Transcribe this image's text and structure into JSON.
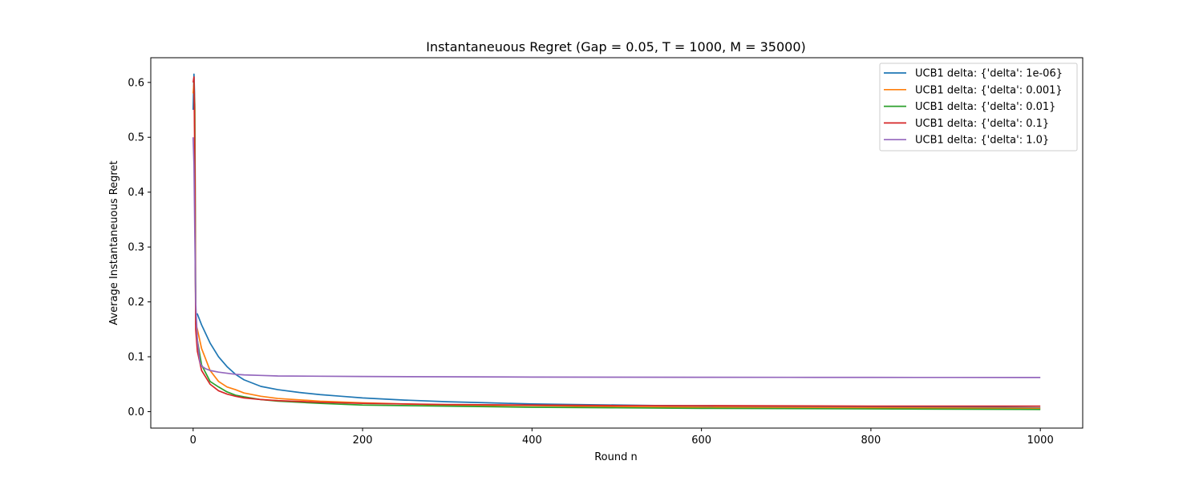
{
  "chart_data": {
    "type": "line",
    "title": "Instantaneuous Regret (Gap = 0.05, T = 1000, M = 35000)",
    "xlabel": "Round n",
    "ylabel": "Average Instantaneuous Regret",
    "xlim": [
      -50,
      1050
    ],
    "ylim": [
      -0.03,
      0.645
    ],
    "xticks": [
      0,
      200,
      400,
      600,
      800,
      1000
    ],
    "yticks": [
      0.0,
      0.1,
      0.2,
      0.3,
      0.4,
      0.5,
      0.6
    ],
    "legend_position": "top-right",
    "series": [
      {
        "name": "UCB1 delta: {'delta': 1e-06}",
        "color": "#1f77b4",
        "x": [
          0,
          1,
          2,
          3,
          5,
          10,
          20,
          30,
          40,
          50,
          60,
          80,
          100,
          125,
          150,
          175,
          200,
          250,
          300,
          350,
          400,
          450,
          500,
          600,
          700,
          800,
          900,
          1000
        ],
        "y": [
          0.55,
          0.615,
          0.56,
          0.178,
          0.178,
          0.158,
          0.125,
          0.1,
          0.082,
          0.068,
          0.058,
          0.046,
          0.04,
          0.035,
          0.031,
          0.028,
          0.025,
          0.021,
          0.018,
          0.016,
          0.014,
          0.013,
          0.012,
          0.01,
          0.009,
          0.008,
          0.008,
          0.007
        ]
      },
      {
        "name": "UCB1 delta: {'delta': 0.001}",
        "color": "#ff7f0e",
        "x": [
          0,
          1,
          2,
          3,
          5,
          10,
          20,
          30,
          40,
          50,
          60,
          80,
          100,
          150,
          200,
          300,
          400,
          500,
          600,
          800,
          1000
        ],
        "y": [
          0.58,
          0.6,
          0.55,
          0.16,
          0.15,
          0.115,
          0.075,
          0.055,
          0.045,
          0.04,
          0.034,
          0.028,
          0.024,
          0.019,
          0.016,
          0.012,
          0.011,
          0.009,
          0.008,
          0.007,
          0.006
        ]
      },
      {
        "name": "UCB1 delta: {'delta': 0.01}",
        "color": "#2ca02c",
        "x": [
          0,
          1,
          2,
          3,
          5,
          10,
          20,
          30,
          40,
          50,
          60,
          80,
          100,
          150,
          200,
          300,
          400,
          500,
          600,
          800,
          1000
        ],
        "y": [
          0.6,
          0.6,
          0.5,
          0.16,
          0.13,
          0.085,
          0.055,
          0.045,
          0.036,
          0.03,
          0.027,
          0.022,
          0.019,
          0.015,
          0.012,
          0.01,
          0.008,
          0.007,
          0.006,
          0.005,
          0.004
        ]
      },
      {
        "name": "UCB1 delta: {'delta': 0.1}",
        "color": "#d62728",
        "x": [
          0,
          1,
          2,
          3,
          5,
          10,
          20,
          30,
          40,
          50,
          60,
          80,
          100,
          150,
          200,
          300,
          400,
          500,
          600,
          800,
          1000
        ],
        "y": [
          0.6,
          0.61,
          0.45,
          0.15,
          0.11,
          0.075,
          0.05,
          0.038,
          0.032,
          0.028,
          0.025,
          0.022,
          0.02,
          0.017,
          0.015,
          0.013,
          0.012,
          0.011,
          0.011,
          0.01,
          0.01
        ]
      },
      {
        "name": "UCB1 delta: {'delta': 1.0}",
        "color": "#9467bd",
        "x": [
          0,
          1,
          2,
          3,
          5,
          8,
          10,
          15,
          20,
          30,
          40,
          50,
          60,
          80,
          100,
          150,
          200,
          300,
          400,
          500,
          600,
          700,
          800,
          900,
          1000
        ],
        "y": [
          0.5,
          0.45,
          0.32,
          0.2,
          0.13,
          0.09,
          0.083,
          0.078,
          0.075,
          0.072,
          0.07,
          0.068,
          0.067,
          0.066,
          0.065,
          0.0645,
          0.064,
          0.0635,
          0.063,
          0.0628,
          0.0626,
          0.0625,
          0.0624,
          0.0623,
          0.0622
        ]
      }
    ]
  }
}
